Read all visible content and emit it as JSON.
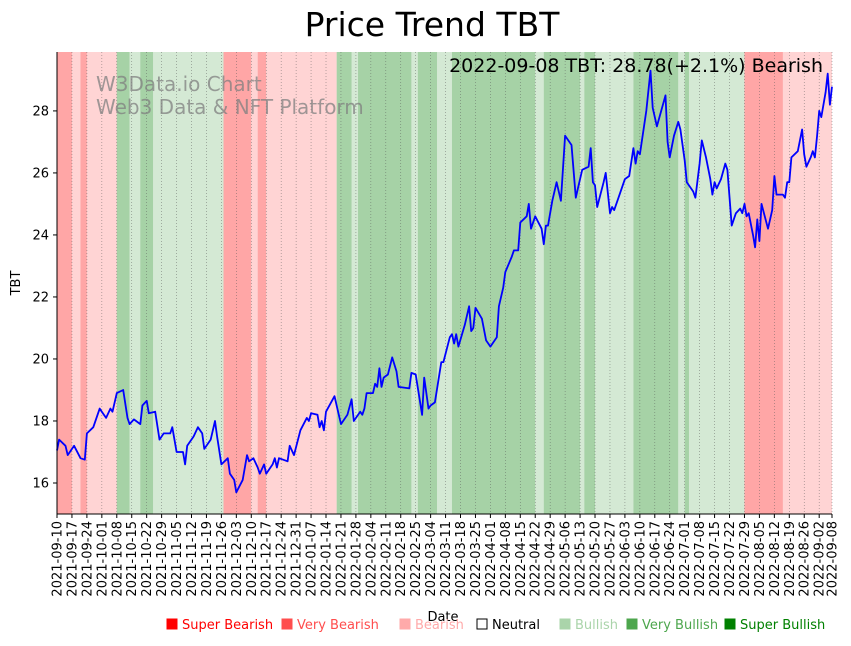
{
  "colors": {
    "Super Bearish": "#ff0000",
    "Very Bearish": "#ff4d4d",
    "Bearish": "#ffaaaa",
    "Neutral": "#ffffff",
    "Bullish": "#aad4aa",
    "Very Bullish": "#4da64d",
    "Super Bullish": "#008000",
    "line": "#0000ff"
  },
  "chart_data": {
    "type": "line",
    "title": "Price Trend TBT",
    "annotation": "2022-09-08 TBT: 28.78(+2.1%) Bearish",
    "watermark": [
      "W3Data.io Chart",
      "Web3 Data & NFT Platform"
    ],
    "xlabel": "Date",
    "ylabel": "TBT",
    "ylim": [
      15.0,
      29.9
    ],
    "yticks": [
      16,
      18,
      20,
      22,
      24,
      26,
      28
    ],
    "x_start": "2021-09-10",
    "x_end": "2022-09-08",
    "xtick_labels": [
      "2021-09-10",
      "2021-09-17",
      "2021-09-24",
      "2021-10-01",
      "2021-10-08",
      "2021-10-15",
      "2021-10-22",
      "2021-10-29",
      "2021-11-05",
      "2021-11-12",
      "2021-11-19",
      "2021-11-26",
      "2021-12-03",
      "2021-12-10",
      "2021-12-17",
      "2021-12-24",
      "2021-12-31",
      "2022-01-07",
      "2022-01-14",
      "2022-01-21",
      "2022-01-28",
      "2022-02-04",
      "2022-02-11",
      "2022-02-18",
      "2022-02-25",
      "2022-03-04",
      "2022-03-11",
      "2022-03-18",
      "2022-03-25",
      "2022-04-01",
      "2022-04-08",
      "2022-04-15",
      "2022-04-22",
      "2022-04-29",
      "2022-05-06",
      "2022-05-13",
      "2022-05-20",
      "2022-05-27",
      "2022-06-03",
      "2022-06-10",
      "2022-06-17",
      "2022-06-24",
      "2022-07-01",
      "2022-07-08",
      "2022-07-15",
      "2022-07-22",
      "2022-07-29",
      "2022-08-05",
      "2022-08-12",
      "2022-08-19",
      "2022-08-26",
      "2022-09-02",
      "2022-09-08"
    ],
    "legend": [
      "Super Bearish",
      "Very Bearish",
      "Bearish",
      "Neutral",
      "Bullish",
      "Very Bullish",
      "Super Bullish"
    ],
    "sentiment_bands": [
      {
        "start": "2021-09-10",
        "end": "2021-09-17",
        "sentiment": "Very Bearish"
      },
      {
        "start": "2021-09-17",
        "end": "2021-09-21",
        "sentiment": "Bearish"
      },
      {
        "start": "2021-09-21",
        "end": "2021-09-24",
        "sentiment": "Very Bearish"
      },
      {
        "start": "2021-09-24",
        "end": "2021-10-08",
        "sentiment": "Bearish"
      },
      {
        "start": "2021-10-08",
        "end": "2021-10-14",
        "sentiment": "Very Bullish"
      },
      {
        "start": "2021-10-14",
        "end": "2021-10-19",
        "sentiment": "Bullish"
      },
      {
        "start": "2021-10-19",
        "end": "2021-10-25",
        "sentiment": "Very Bullish"
      },
      {
        "start": "2021-10-25",
        "end": "2021-11-27",
        "sentiment": "Bullish"
      },
      {
        "start": "2021-11-27",
        "end": "2021-12-10",
        "sentiment": "Very Bearish"
      },
      {
        "start": "2021-12-10",
        "end": "2021-12-13",
        "sentiment": "Bearish"
      },
      {
        "start": "2021-12-13",
        "end": "2021-12-17",
        "sentiment": "Very Bearish"
      },
      {
        "start": "2021-12-17",
        "end": "2022-01-19",
        "sentiment": "Bearish"
      },
      {
        "start": "2022-01-19",
        "end": "2022-01-26",
        "sentiment": "Very Bullish"
      },
      {
        "start": "2022-01-26",
        "end": "2022-01-29",
        "sentiment": "Bullish"
      },
      {
        "start": "2022-01-29",
        "end": "2022-02-23",
        "sentiment": "Very Bullish"
      },
      {
        "start": "2022-02-23",
        "end": "2022-02-26",
        "sentiment": "Bullish"
      },
      {
        "start": "2022-02-26",
        "end": "2022-03-07",
        "sentiment": "Very Bullish"
      },
      {
        "start": "2022-03-07",
        "end": "2022-03-14",
        "sentiment": "Bullish"
      },
      {
        "start": "2022-03-14",
        "end": "2022-04-22",
        "sentiment": "Very Bullish"
      },
      {
        "start": "2022-04-22",
        "end": "2022-04-26",
        "sentiment": "Bullish"
      },
      {
        "start": "2022-04-26",
        "end": "2022-05-13",
        "sentiment": "Very Bullish"
      },
      {
        "start": "2022-05-13",
        "end": "2022-05-15",
        "sentiment": "Bullish"
      },
      {
        "start": "2022-05-15",
        "end": "2022-05-20",
        "sentiment": "Very Bullish"
      },
      {
        "start": "2022-05-20",
        "end": "2022-05-27",
        "sentiment": "Bullish"
      },
      {
        "start": "2022-05-27",
        "end": "2022-06-07",
        "sentiment": "Bullish"
      },
      {
        "start": "2022-06-07",
        "end": "2022-06-28",
        "sentiment": "Very Bullish"
      },
      {
        "start": "2022-06-28",
        "end": "2022-07-01",
        "sentiment": "Bullish"
      },
      {
        "start": "2022-07-01",
        "end": "2022-07-03",
        "sentiment": "Very Bullish"
      },
      {
        "start": "2022-07-03",
        "end": "2022-07-29",
        "sentiment": "Bullish"
      },
      {
        "start": "2022-07-29",
        "end": "2022-08-16",
        "sentiment": "Very Bearish"
      },
      {
        "start": "2022-08-16",
        "end": "2022-09-08",
        "sentiment": "Bearish"
      }
    ],
    "series": [
      {
        "name": "TBT",
        "points": [
          [
            "2021-09-10",
            17.05
          ],
          [
            "2021-09-11",
            17.4
          ],
          [
            "2021-09-14",
            17.2
          ],
          [
            "2021-09-15",
            16.9
          ],
          [
            "2021-09-18",
            17.2
          ],
          [
            "2021-09-21",
            16.8
          ],
          [
            "2021-09-23",
            16.75
          ],
          [
            "2021-09-24",
            17.6
          ],
          [
            "2021-09-27",
            17.8
          ],
          [
            "2021-09-30",
            18.4
          ],
          [
            "2021-10-01",
            18.3
          ],
          [
            "2021-10-03",
            18.1
          ],
          [
            "2021-10-05",
            18.4
          ],
          [
            "2021-10-06",
            18.3
          ],
          [
            "2021-10-08",
            18.9
          ],
          [
            "2021-10-11",
            19.0
          ],
          [
            "2021-10-13",
            18.1
          ],
          [
            "2021-10-14",
            17.9
          ],
          [
            "2021-10-16",
            18.05
          ],
          [
            "2021-10-19",
            17.9
          ],
          [
            "2021-10-20",
            18.5
          ],
          [
            "2021-10-22",
            18.65
          ],
          [
            "2021-10-23",
            18.25
          ],
          [
            "2021-10-26",
            18.3
          ],
          [
            "2021-10-28",
            17.4
          ],
          [
            "2021-10-30",
            17.6
          ],
          [
            "2021-11-02",
            17.6
          ],
          [
            "2021-11-03",
            17.8
          ],
          [
            "2021-11-05",
            17.0
          ],
          [
            "2021-11-08",
            17.0
          ],
          [
            "2021-11-09",
            16.6
          ],
          [
            "2021-11-10",
            17.2
          ],
          [
            "2021-11-13",
            17.5
          ],
          [
            "2021-11-15",
            17.8
          ],
          [
            "2021-11-17",
            17.6
          ],
          [
            "2021-11-18",
            17.1
          ],
          [
            "2021-11-21",
            17.4
          ],
          [
            "2021-11-23",
            18.0
          ],
          [
            "2021-11-24",
            17.5
          ],
          [
            "2021-11-26",
            16.6
          ],
          [
            "2021-11-29",
            16.8
          ],
          [
            "2021-11-30",
            16.3
          ],
          [
            "2021-12-02",
            16.1
          ],
          [
            "2021-12-03",
            15.7
          ],
          [
            "2021-12-06",
            16.1
          ],
          [
            "2021-12-08",
            16.9
          ],
          [
            "2021-12-09",
            16.7
          ],
          [
            "2021-12-11",
            16.8
          ],
          [
            "2021-12-13",
            16.5
          ],
          [
            "2021-12-14",
            16.3
          ],
          [
            "2021-12-16",
            16.6
          ],
          [
            "2021-12-17",
            16.3
          ],
          [
            "2021-12-20",
            16.6
          ],
          [
            "2021-12-21",
            16.8
          ],
          [
            "2021-12-22",
            16.5
          ],
          [
            "2021-12-23",
            16.8
          ],
          [
            "2021-12-27",
            16.7
          ],
          [
            "2021-12-28",
            17.2
          ],
          [
            "2021-12-30",
            16.9
          ],
          [
            "2022-01-02",
            17.7
          ],
          [
            "2022-01-05",
            18.1
          ],
          [
            "2022-01-06",
            18.0
          ],
          [
            "2022-01-07",
            18.25
          ],
          [
            "2022-01-10",
            18.2
          ],
          [
            "2022-01-11",
            17.8
          ],
          [
            "2022-01-12",
            18.0
          ],
          [
            "2022-01-13",
            17.7
          ],
          [
            "2022-01-14",
            18.3
          ],
          [
            "2022-01-18",
            18.8
          ],
          [
            "2022-01-20",
            18.2
          ],
          [
            "2022-01-21",
            17.9
          ],
          [
            "2022-01-24",
            18.2
          ],
          [
            "2022-01-26",
            18.7
          ],
          [
            "2022-01-27",
            18.0
          ],
          [
            "2022-01-30",
            18.3
          ],
          [
            "2022-01-31",
            18.2
          ],
          [
            "2022-02-01",
            18.4
          ],
          [
            "2022-02-02",
            18.9
          ],
          [
            "2022-02-05",
            18.9
          ],
          [
            "2022-02-06",
            19.2
          ],
          [
            "2022-02-07",
            19.1
          ],
          [
            "2022-02-08",
            19.7
          ],
          [
            "2022-02-09",
            19.1
          ],
          [
            "2022-02-10",
            19.4
          ],
          [
            "2022-02-12",
            19.5
          ],
          [
            "2022-02-14",
            20.05
          ],
          [
            "2022-02-16",
            19.6
          ],
          [
            "2022-02-17",
            19.1
          ],
          [
            "2022-02-22",
            19.05
          ],
          [
            "2022-02-23",
            19.55
          ],
          [
            "2022-02-25",
            19.5
          ],
          [
            "2022-02-28",
            18.2
          ],
          [
            "2022-03-01",
            19.4
          ],
          [
            "2022-03-03",
            18.4
          ],
          [
            "2022-03-04",
            18.5
          ],
          [
            "2022-03-06",
            18.6
          ],
          [
            "2022-03-09",
            19.9
          ],
          [
            "2022-03-10",
            19.9
          ],
          [
            "2022-03-13",
            20.7
          ],
          [
            "2022-03-14",
            20.8
          ],
          [
            "2022-03-15",
            20.5
          ],
          [
            "2022-03-16",
            20.8
          ],
          [
            "2022-03-17",
            20.4
          ],
          [
            "2022-03-20",
            21.1
          ],
          [
            "2022-03-22",
            21.7
          ],
          [
            "2022-03-23",
            20.9
          ],
          [
            "2022-03-24",
            21.0
          ],
          [
            "2022-03-25",
            21.65
          ],
          [
            "2022-03-28",
            21.3
          ],
          [
            "2022-03-30",
            20.6
          ],
          [
            "2022-04-01",
            20.4
          ],
          [
            "2022-04-04",
            20.7
          ],
          [
            "2022-04-05",
            21.7
          ],
          [
            "2022-04-07",
            22.3
          ],
          [
            "2022-04-08",
            22.8
          ],
          [
            "2022-04-11",
            23.3
          ],
          [
            "2022-04-12",
            23.5
          ],
          [
            "2022-04-14",
            23.5
          ],
          [
            "2022-04-15",
            24.4
          ],
          [
            "2022-04-18",
            24.6
          ],
          [
            "2022-04-19",
            25.0
          ],
          [
            "2022-04-20",
            24.2
          ],
          [
            "2022-04-22",
            24.6
          ],
          [
            "2022-04-25",
            24.2
          ],
          [
            "2022-04-26",
            23.7
          ],
          [
            "2022-04-27",
            24.3
          ],
          [
            "2022-04-28",
            24.3
          ],
          [
            "2022-04-30",
            25.1
          ],
          [
            "2022-05-02",
            25.7
          ],
          [
            "2022-05-04",
            25.1
          ],
          [
            "2022-05-06",
            27.2
          ],
          [
            "2022-05-09",
            26.9
          ],
          [
            "2022-05-11",
            25.2
          ],
          [
            "2022-05-12",
            25.5
          ],
          [
            "2022-05-14",
            26.1
          ],
          [
            "2022-05-17",
            26.2
          ],
          [
            "2022-05-18",
            26.8
          ],
          [
            "2022-05-19",
            25.7
          ],
          [
            "2022-05-20",
            25.6
          ],
          [
            "2022-05-21",
            24.9
          ],
          [
            "2022-05-24",
            25.7
          ],
          [
            "2022-05-25",
            26.0
          ],
          [
            "2022-05-27",
            24.7
          ],
          [
            "2022-05-28",
            24.9
          ],
          [
            "2022-05-29",
            24.8
          ],
          [
            "2022-05-31",
            25.2
          ],
          [
            "2022-06-03",
            25.8
          ],
          [
            "2022-06-05",
            25.9
          ],
          [
            "2022-06-07",
            26.8
          ],
          [
            "2022-06-08",
            26.3
          ],
          [
            "2022-06-09",
            26.7
          ],
          [
            "2022-06-10",
            26.6
          ],
          [
            "2022-06-13",
            28.0
          ],
          [
            "2022-06-15",
            29.3
          ],
          [
            "2022-06-16",
            28.1
          ],
          [
            "2022-06-18",
            27.5
          ],
          [
            "2022-06-20",
            28.0
          ],
          [
            "2022-06-22",
            28.5
          ],
          [
            "2022-06-23",
            27.0
          ],
          [
            "2022-06-24",
            26.5
          ],
          [
            "2022-06-26",
            27.2
          ],
          [
            "2022-06-28",
            27.65
          ],
          [
            "2022-06-29",
            27.4
          ],
          [
            "2022-07-01",
            26.4
          ],
          [
            "2022-07-02",
            25.7
          ],
          [
            "2022-07-05",
            25.4
          ],
          [
            "2022-07-06",
            25.2
          ],
          [
            "2022-07-08",
            26.3
          ],
          [
            "2022-07-09",
            27.05
          ],
          [
            "2022-07-11",
            26.5
          ],
          [
            "2022-07-13",
            25.8
          ],
          [
            "2022-07-14",
            25.3
          ],
          [
            "2022-07-15",
            25.7
          ],
          [
            "2022-07-16",
            25.5
          ],
          [
            "2022-07-18",
            25.8
          ],
          [
            "2022-07-20",
            26.3
          ],
          [
            "2022-07-21",
            26.1
          ],
          [
            "2022-07-23",
            24.3
          ],
          [
            "2022-07-25",
            24.7
          ],
          [
            "2022-07-27",
            24.85
          ],
          [
            "2022-07-28",
            24.7
          ],
          [
            "2022-07-29",
            25.0
          ],
          [
            "2022-07-30",
            24.6
          ],
          [
            "2022-07-31",
            24.7
          ],
          [
            "2022-08-02",
            24.0
          ],
          [
            "2022-08-03",
            23.6
          ],
          [
            "2022-08-04",
            24.5
          ],
          [
            "2022-08-05",
            23.8
          ],
          [
            "2022-08-06",
            25.0
          ],
          [
            "2022-08-09",
            24.2
          ],
          [
            "2022-08-11",
            24.8
          ],
          [
            "2022-08-12",
            25.9
          ],
          [
            "2022-08-13",
            25.3
          ],
          [
            "2022-08-16",
            25.3
          ],
          [
            "2022-08-17",
            25.2
          ],
          [
            "2022-08-18",
            25.7
          ],
          [
            "2022-08-19",
            25.7
          ],
          [
            "2022-08-20",
            26.5
          ],
          [
            "2022-08-23",
            26.7
          ],
          [
            "2022-08-25",
            27.4
          ],
          [
            "2022-08-26",
            26.6
          ],
          [
            "2022-08-27",
            26.2
          ],
          [
            "2022-08-29",
            26.5
          ],
          [
            "2022-08-30",
            26.7
          ],
          [
            "2022-08-31",
            26.5
          ],
          [
            "2022-09-01",
            27.2
          ],
          [
            "2022-09-02",
            28.0
          ],
          [
            "2022-09-03",
            27.8
          ],
          [
            "2022-09-05",
            28.6
          ],
          [
            "2022-09-06",
            29.2
          ],
          [
            "2022-09-07",
            28.2
          ],
          [
            "2022-09-08",
            28.78
          ]
        ]
      }
    ]
  }
}
